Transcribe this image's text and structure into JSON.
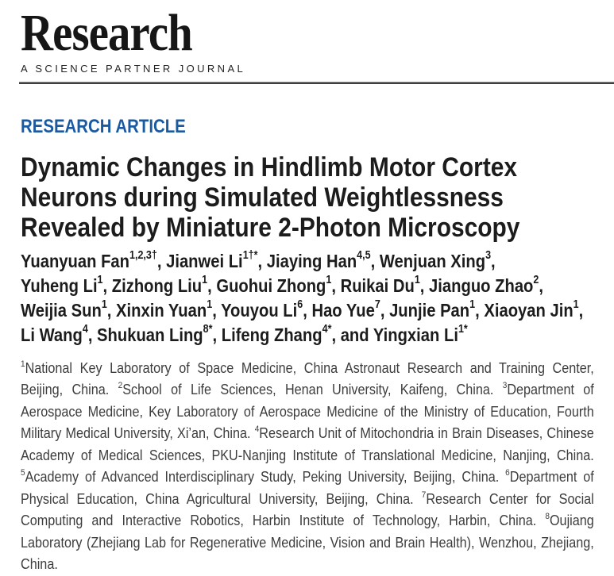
{
  "journal": {
    "logo": "Research",
    "tagline": "A SCIENCE PARTNER JOURNAL"
  },
  "article": {
    "kicker": "RESEARCH ARTICLE",
    "title_lines": [
      "Dynamic Changes in Hindlimb Motor Cortex",
      "Neurons during Simulated Weightlessness",
      "Revealed by Miniature 2-Photon Microscopy"
    ],
    "author_lines": [
      [
        {
          "name": "Yuanyuan Fan",
          "sup": "1,2,3†",
          "post": ", "
        },
        {
          "name": "Jianwei Li",
          "sup": "1†*",
          "post": ", "
        },
        {
          "name": "Jiaying Han",
          "sup": "4,5",
          "post": ", "
        },
        {
          "name": "Wenjuan Xing",
          "sup": "3",
          "post": ","
        }
      ],
      [
        {
          "name": "Yuheng Li",
          "sup": "1",
          "post": ", "
        },
        {
          "name": "Zizhong Liu",
          "sup": "1",
          "post": ", "
        },
        {
          "name": "Guohui Zhong",
          "sup": "1",
          "post": ", "
        },
        {
          "name": "Ruikai Du",
          "sup": "1",
          "post": ", "
        },
        {
          "name": "Jianguo Zhao",
          "sup": "2",
          "post": ","
        }
      ],
      [
        {
          "name": "Weijia Sun",
          "sup": "1",
          "post": ", "
        },
        {
          "name": "Xinxin Yuan",
          "sup": "1",
          "post": ", "
        },
        {
          "name": "Youyou Li",
          "sup": "6",
          "post": ", "
        },
        {
          "name": "Hao Yue",
          "sup": "7",
          "post": ", "
        },
        {
          "name": "Junjie Pan",
          "sup": "1",
          "post": ", "
        },
        {
          "name": "Xiaoyan Jin",
          "sup": "1",
          "post": ","
        }
      ],
      [
        {
          "name": "Li Wang",
          "sup": "4",
          "post": ", "
        },
        {
          "name": "Shukuan Ling",
          "sup": "8*",
          "post": ", "
        },
        {
          "name": "Lifeng Zhang",
          "sup": "4*",
          "post": ", "
        },
        {
          "pre": "and ",
          "name": "Yingxian Li",
          "sup": "1*",
          "post": ""
        }
      ]
    ],
    "affiliations": [
      {
        "sup": "1",
        "text": "National Key Laboratory of Space Medicine, China Astronaut Research and Training Center, Beijing, China."
      },
      {
        "sup": "2",
        "text": "School of Life Sciences, Henan University, Kaifeng, China."
      },
      {
        "sup": "3",
        "text": "Department of Aerospace Medicine, Key Laboratory of Aerospace Medicine of the Ministry of Education, Fourth Military Medical University, Xi’an, China."
      },
      {
        "sup": "4",
        "text": "Research Unit of Mitochondria in Brain Diseases, Chinese Academy of Medical Sciences, PKU-Nanjing Institute of Translational Medicine, Nanjing, China."
      },
      {
        "sup": "5",
        "text": "Academy of Advanced Interdisciplinary Study, Peking University, Beijing, China."
      },
      {
        "sup": "6",
        "text": "Department of Physical Education, China Agricultural University, Beijing, China."
      },
      {
        "sup": "7",
        "text": "Research Center for Social Computing and Interactive Robotics, Harbin Institute of Technology, Harbin, China."
      },
      {
        "sup": "8",
        "text": "Oujiang Laboratory (Zhejiang Lab for Regenerative Medicine, Vision and Brain Health), Wenzhou, Zhejiang, China."
      }
    ],
    "colors": {
      "accent_blue": "#1b5aa0",
      "body_gray": "#3d3d3d",
      "heading_black": "#1c1c1c"
    }
  }
}
